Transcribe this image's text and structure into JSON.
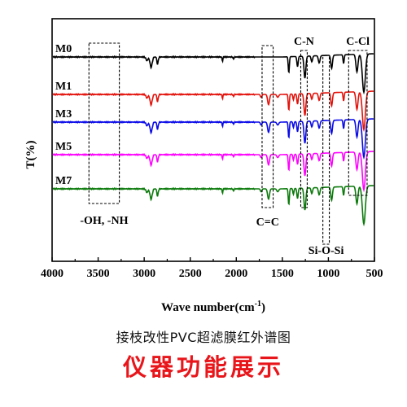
{
  "caption": "接枝改性PVC超滤膜红外谱图",
  "watermark": "仪器功能展示",
  "chart_data": {
    "type": "line",
    "xlabel": "Wave number(cm",
    "xlabel_sup": "-1",
    "xlabel_tail": ")",
    "ylabel": "T(%)",
    "xlim": [
      4000,
      500
    ],
    "x_reversed": true,
    "grid": false,
    "xticks": [
      4000,
      3500,
      3000,
      2500,
      2000,
      1500,
      1000,
      500
    ],
    "series": [
      {
        "name": "M0",
        "color": "#000000",
        "baseline": 70
      },
      {
        "name": "M1",
        "color": "#e3120b",
        "baseline": 116
      },
      {
        "name": "M3",
        "color": "#0a0ae8",
        "baseline": 150
      },
      {
        "name": "M5",
        "color": "#ff00ff",
        "baseline": 190
      },
      {
        "name": "M7",
        "color": "#0b7a0b",
        "baseline": 232
      }
    ],
    "bands": [
      {
        "label": "-OH, -NH",
        "x_range": [
          3600,
          3270
        ]
      },
      {
        "label": "C=C",
        "x_range": [
          1720,
          1600
        ]
      },
      {
        "label": "C-N",
        "x_range": [
          1300,
          1230
        ]
      },
      {
        "label": "Si-O-Si",
        "x_range": [
          1060,
          990
        ]
      },
      {
        "label": "C-Cl",
        "x_range": [
          780,
          580
        ]
      }
    ]
  }
}
